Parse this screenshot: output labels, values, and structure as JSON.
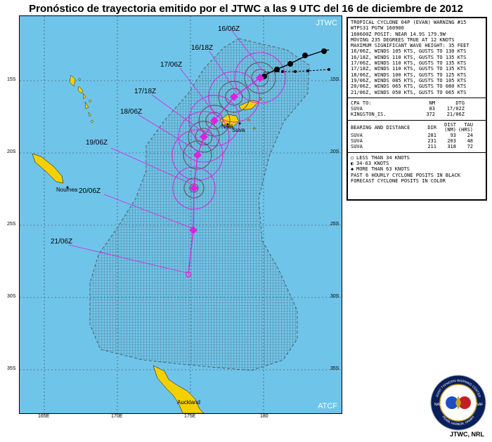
{
  "title": "Pronóstico de trayectoria emitido por el JTWC a las 9 UTC del 16 de diciembre de 2012",
  "map": {
    "corner_top_right": "JTWC",
    "corner_bottom_right": "ATCF",
    "places": [
      "Noumea",
      "Nadi",
      "Suva",
      "Auckland"
    ],
    "lat_labels": [
      "15S",
      "20S",
      "25S",
      "30S",
      "35S"
    ],
    "lon_labels": [
      "165E",
      "170E",
      "175E",
      "180"
    ],
    "forecast_labels": [
      "16/06Z",
      "16/18Z",
      "17/06Z",
      "17/18Z",
      "18/06Z",
      "19/06Z",
      "20/06Z",
      "21/06Z"
    ],
    "colors": {
      "ocean": "#6fc4ea",
      "land": "#f5d000",
      "track": "#e020e0",
      "past_track": "#000000",
      "danger_area": "#444444"
    }
  },
  "warning": {
    "lines": [
      "TROPICAL CYCLONE 04P (EVAN) WARNING #15",
      "WTPS31 PGTW 160900",
      "160600Z POSIT: NEAR 14.9S 179.9W",
      "MOVING 235 DEGREES TRUE AT 12 KNOTS",
      "MAXIMUM SIGNIFICANT WAVE HEIGHT: 35 FEET",
      "16/06Z, WINDS 105 KTS, GUSTS TO 130 KTS",
      "16/18Z, WINDS 110 KTS, GUSTS TO 135 KTS",
      "17/06Z, WINDS 110 KTS, GUSTS TO 135 KTS",
      "17/18Z, WINDS 110 KTS, GUSTS TO 135 KTS",
      "18/06Z, WINDS 100 KTS, GUSTS TO 125 KTS",
      "19/06Z, WINDS 085 KTS, GUSTS TO 105 KTS",
      "20/06Z, WINDS 065 KTS, GUSTS TO 080 KTS",
      "21/06Z, WINDS 050 KTS, GUSTS TO 065 KTS"
    ],
    "cpa_header": [
      "CPA TO:",
      "NM",
      "DTG"
    ],
    "cpa_rows": [
      [
        "SUVA",
        "83",
        "17/02Z"
      ],
      [
        "KINGSTON_IS.",
        "372",
        "21/06Z"
      ]
    ],
    "bearing_header": [
      "BEARING AND DISTANCE",
      "DIR",
      "DIST (NM)",
      "TAU (HRS)"
    ],
    "bearing_rows": [
      [
        "SUVA",
        "281",
        "93",
        "24"
      ],
      [
        "SUVA",
        "231",
        "203",
        "48"
      ],
      [
        "SUVA",
        "211",
        "318",
        "72"
      ]
    ],
    "legend": [
      "LESS THAN 34 KNOTS",
      "34-63 KNOTS",
      "MORE THAN 63 KNOTS",
      "PAST 6 HOURLY CYCLONE POSITS IN BLACK",
      "FORECAST CYCLONE POSITS IN COLOR"
    ]
  },
  "seal": {
    "top": "JOINT TYPHOON WARNING CENTER",
    "left": "NAVY",
    "right": "USAF",
    "bottom": "PEARL HARBOR, HAWAII"
  },
  "credit": "JTWC, NRL"
}
